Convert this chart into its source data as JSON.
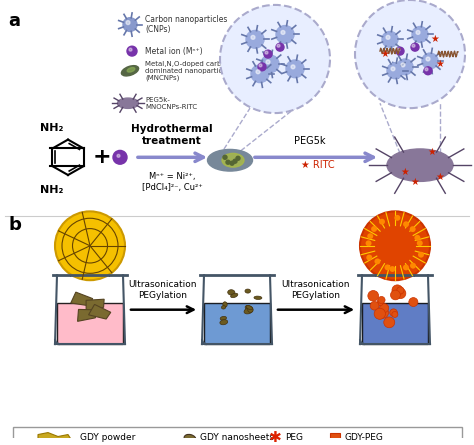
{
  "panel_a_label": "a",
  "panel_b_label": "b",
  "bg_color": "#ffffff",
  "legend_items": [
    "GDY powder",
    "GDY nanosheets",
    "PEG",
    "GDY-PEG"
  ],
  "legend_colors": [
    "#b8a020",
    "#6b5a20",
    "#cc0000",
    "#e06020"
  ],
  "arrow_color": "#8888cc",
  "arrow_color2": "#000000",
  "hydrothermal_text": "Hydrothermal\ntreatment",
  "ultrasonication_text": "Ultrasonication\nPEGylation",
  "ion_text": "Mⁿ⁺ = Ni²⁺,\n[PdCl₄]²⁻, Cu²⁺",
  "peg5k_text": "PEG5k",
  "ritc_text": "★ RITC",
  "legend_box_color": "#dddddd",
  "beaker_pink": "#ffb0b0",
  "beaker_blue": "#6699cc",
  "beaker_blue2": "#4477bb",
  "gdy_ball_yellow": "#f5c000",
  "gdy_ball_orange": "#e05010",
  "cnp_color": "#8899cc",
  "metal_ion_color": "#7733aa",
  "legend_star_color": "#dd2200"
}
